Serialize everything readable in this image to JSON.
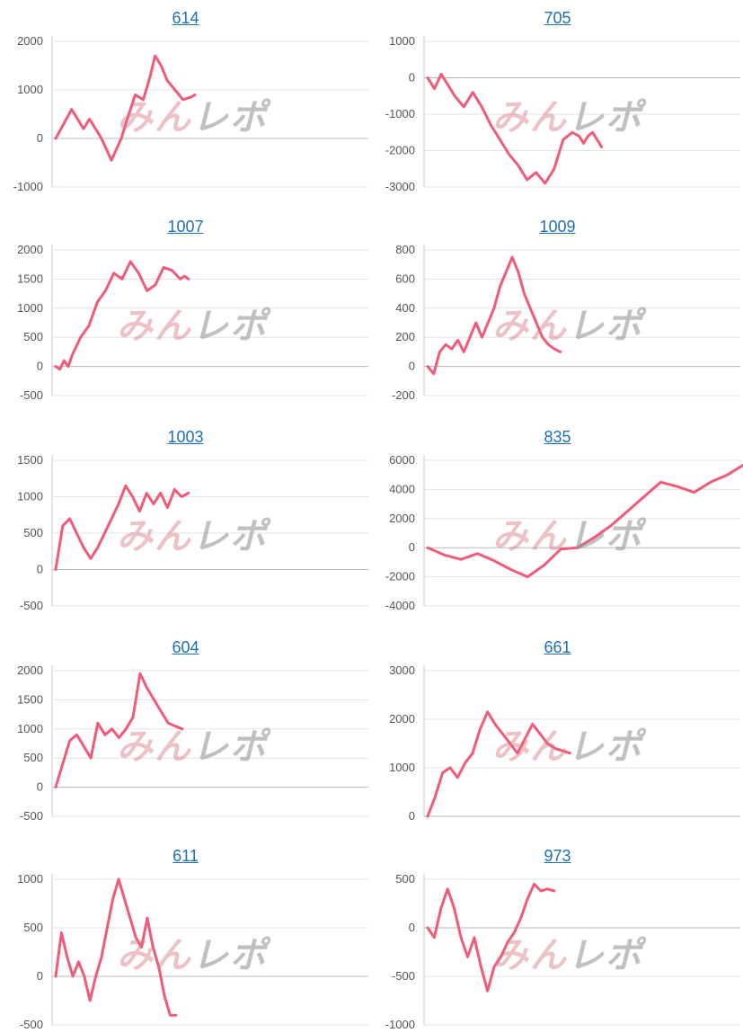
{
  "colors": {
    "line": "#ef5b78",
    "grid": "#e3e3e3",
    "axis": "#c8c8c8",
    "title": "#1f6fb5"
  },
  "watermark": {
    "part1": "みん",
    "part2": "レポ"
  },
  "chart_data": [
    {
      "type": "line",
      "title": "614",
      "ylim": [
        -1000,
        2000
      ],
      "yticks": [
        2000,
        1000,
        0,
        -1000
      ],
      "series": [
        {
          "x": [
            0,
            4,
            8,
            11,
            14,
            17,
            20,
            23,
            28,
            33,
            36,
            40,
            44,
            47,
            50,
            53,
            56,
            60,
            64,
            68,
            70
          ],
          "y": [
            0,
            300,
            600,
            400,
            200,
            400,
            200,
            0,
            -450,
            0,
            400,
            900,
            800,
            1200,
            1700,
            1500,
            1200,
            1000,
            800,
            850,
            900
          ]
        }
      ]
    },
    {
      "type": "line",
      "title": "705",
      "ylim": [
        -3000,
        1000
      ],
      "yticks": [
        1000,
        0,
        -1000,
        -2000,
        -3000
      ],
      "series": [
        {
          "x": [
            0,
            3,
            6,
            9,
            12,
            16,
            20,
            24,
            28,
            32,
            36,
            40,
            44,
            48,
            52,
            56,
            58,
            60,
            64,
            67,
            69,
            71,
            73,
            75,
            77
          ],
          "y": [
            0,
            -300,
            100,
            -200,
            -500,
            -800,
            -400,
            -800,
            -1300,
            -1700,
            -2100,
            -2400,
            -2800,
            -2600,
            -2900,
            -2500,
            -2100,
            -1700,
            -1500,
            -1600,
            -1800,
            -1600,
            -1500,
            -1700,
            -1900
          ]
        }
      ]
    },
    {
      "type": "line",
      "title": "1007",
      "ylim": [
        -500,
        2000
      ],
      "yticks": [
        2000,
        1500,
        1000,
        500,
        0,
        -500
      ],
      "series": [
        {
          "x": [
            0,
            2,
            4,
            6,
            8,
            12,
            16,
            20,
            24,
            28,
            32,
            36,
            40,
            44,
            48,
            52,
            56,
            60,
            62,
            64
          ],
          "y": [
            0,
            -50,
            100,
            0,
            200,
            500,
            700,
            1100,
            1300,
            1600,
            1500,
            1800,
            1600,
            1300,
            1400,
            1700,
            1650,
            1500,
            1550,
            1500
          ]
        }
      ]
    },
    {
      "type": "line",
      "title": "1009",
      "ylim": [
        -200,
        800
      ],
      "yticks": [
        800,
        600,
        400,
        200,
        0,
        -200
      ],
      "series": [
        {
          "x": [
            0,
            2,
            4,
            6,
            8,
            10,
            12,
            14,
            16,
            18,
            20,
            22,
            24,
            26,
            28,
            30,
            32,
            34,
            36,
            38,
            40,
            42,
            44
          ],
          "y": [
            0,
            -50,
            100,
            150,
            120,
            180,
            100,
            200,
            300,
            200,
            300,
            400,
            550,
            650,
            750,
            650,
            500,
            400,
            300,
            200,
            150,
            120,
            100
          ]
        }
      ]
    },
    {
      "type": "line",
      "title": "1003",
      "ylim": [
        -500,
        1500
      ],
      "yticks": [
        1500,
        1000,
        500,
        0,
        -500
      ],
      "series": [
        {
          "x": [
            0,
            3,
            6,
            9,
            12,
            15,
            18,
            21,
            24,
            27,
            30,
            33,
            36,
            39,
            42,
            45,
            48,
            51,
            54,
            57
          ],
          "y": [
            0,
            600,
            700,
            500,
            300,
            150,
            300,
            500,
            700,
            900,
            1150,
            1000,
            800,
            1050,
            900,
            1050,
            850,
            1100,
            1000,
            1050
          ]
        }
      ]
    },
    {
      "type": "line",
      "title": "835",
      "ylim": [
        -4000,
        6000
      ],
      "yticks": [
        6000,
        4000,
        2000,
        0,
        -2000,
        -4000
      ],
      "series": [
        {
          "x": [
            0,
            5,
            10,
            15,
            20,
            25,
            30,
            35,
            40,
            45,
            50,
            55,
            60,
            65,
            70,
            75,
            80,
            85,
            90,
            95
          ],
          "y": [
            0,
            -500,
            -800,
            -400,
            -900,
            -1500,
            -2000,
            -1200,
            -100,
            0,
            700,
            1500,
            2500,
            3500,
            4500,
            4200,
            3800,
            4500,
            5000,
            5700
          ]
        }
      ]
    },
    {
      "type": "line",
      "title": "604",
      "ylim": [
        -500,
        2000
      ],
      "yticks": [
        2000,
        1500,
        1000,
        500,
        0,
        -500
      ],
      "series": [
        {
          "x": [
            0,
            3,
            6,
            9,
            12,
            15,
            18,
            21,
            24,
            27,
            30,
            33,
            36,
            39,
            42,
            45,
            48,
            51,
            54
          ],
          "y": [
            0,
            400,
            800,
            900,
            700,
            500,
            1100,
            900,
            1000,
            850,
            1000,
            1200,
            1950,
            1700,
            1500,
            1300,
            1100,
            1050,
            1000
          ]
        }
      ]
    },
    {
      "type": "line",
      "title": "661",
      "ylim": [
        0,
        3000
      ],
      "yticks": [
        3000,
        2000,
        1000,
        0
      ],
      "series": [
        {
          "x": [
            0,
            3,
            6,
            9,
            12,
            15,
            18,
            21,
            24,
            27,
            30,
            33,
            36,
            39,
            42,
            45,
            48,
            51,
            54,
            57
          ],
          "y": [
            0,
            400,
            900,
            1000,
            800,
            1100,
            1300,
            1800,
            2150,
            1900,
            1700,
            1500,
            1300,
            1600,
            1900,
            1700,
            1500,
            1400,
            1350,
            1300
          ]
        }
      ]
    },
    {
      "type": "line",
      "title": "611",
      "ylim": [
        -500,
        1000
      ],
      "yticks": [
        1000,
        500,
        0,
        -500
      ],
      "series": [
        {
          "x": [
            0,
            2,
            4,
            6,
            8,
            10,
            12,
            14,
            16,
            18,
            20,
            22,
            24,
            26,
            28,
            30,
            32,
            34,
            36,
            38,
            40,
            42
          ],
          "y": [
            0,
            450,
            200,
            0,
            150,
            0,
            -250,
            0,
            200,
            500,
            800,
            1000,
            800,
            600,
            400,
            300,
            600,
            300,
            100,
            -200,
            -400,
            -400
          ]
        }
      ]
    },
    {
      "type": "line",
      "title": "973",
      "ylim": [
        -1000,
        500
      ],
      "yticks": [
        500,
        0,
        -500,
        -1000
      ],
      "series": [
        {
          "x": [
            0,
            3,
            6,
            9,
            12,
            15,
            18,
            21,
            24,
            27,
            30,
            33,
            36,
            39,
            42,
            45,
            48,
            51,
            54,
            57
          ],
          "y": [
            0,
            -100,
            200,
            400,
            200,
            -100,
            -300,
            -100,
            -400,
            -650,
            -400,
            -300,
            -150,
            -50,
            100,
            300,
            450,
            380,
            400,
            380
          ]
        }
      ]
    }
  ]
}
